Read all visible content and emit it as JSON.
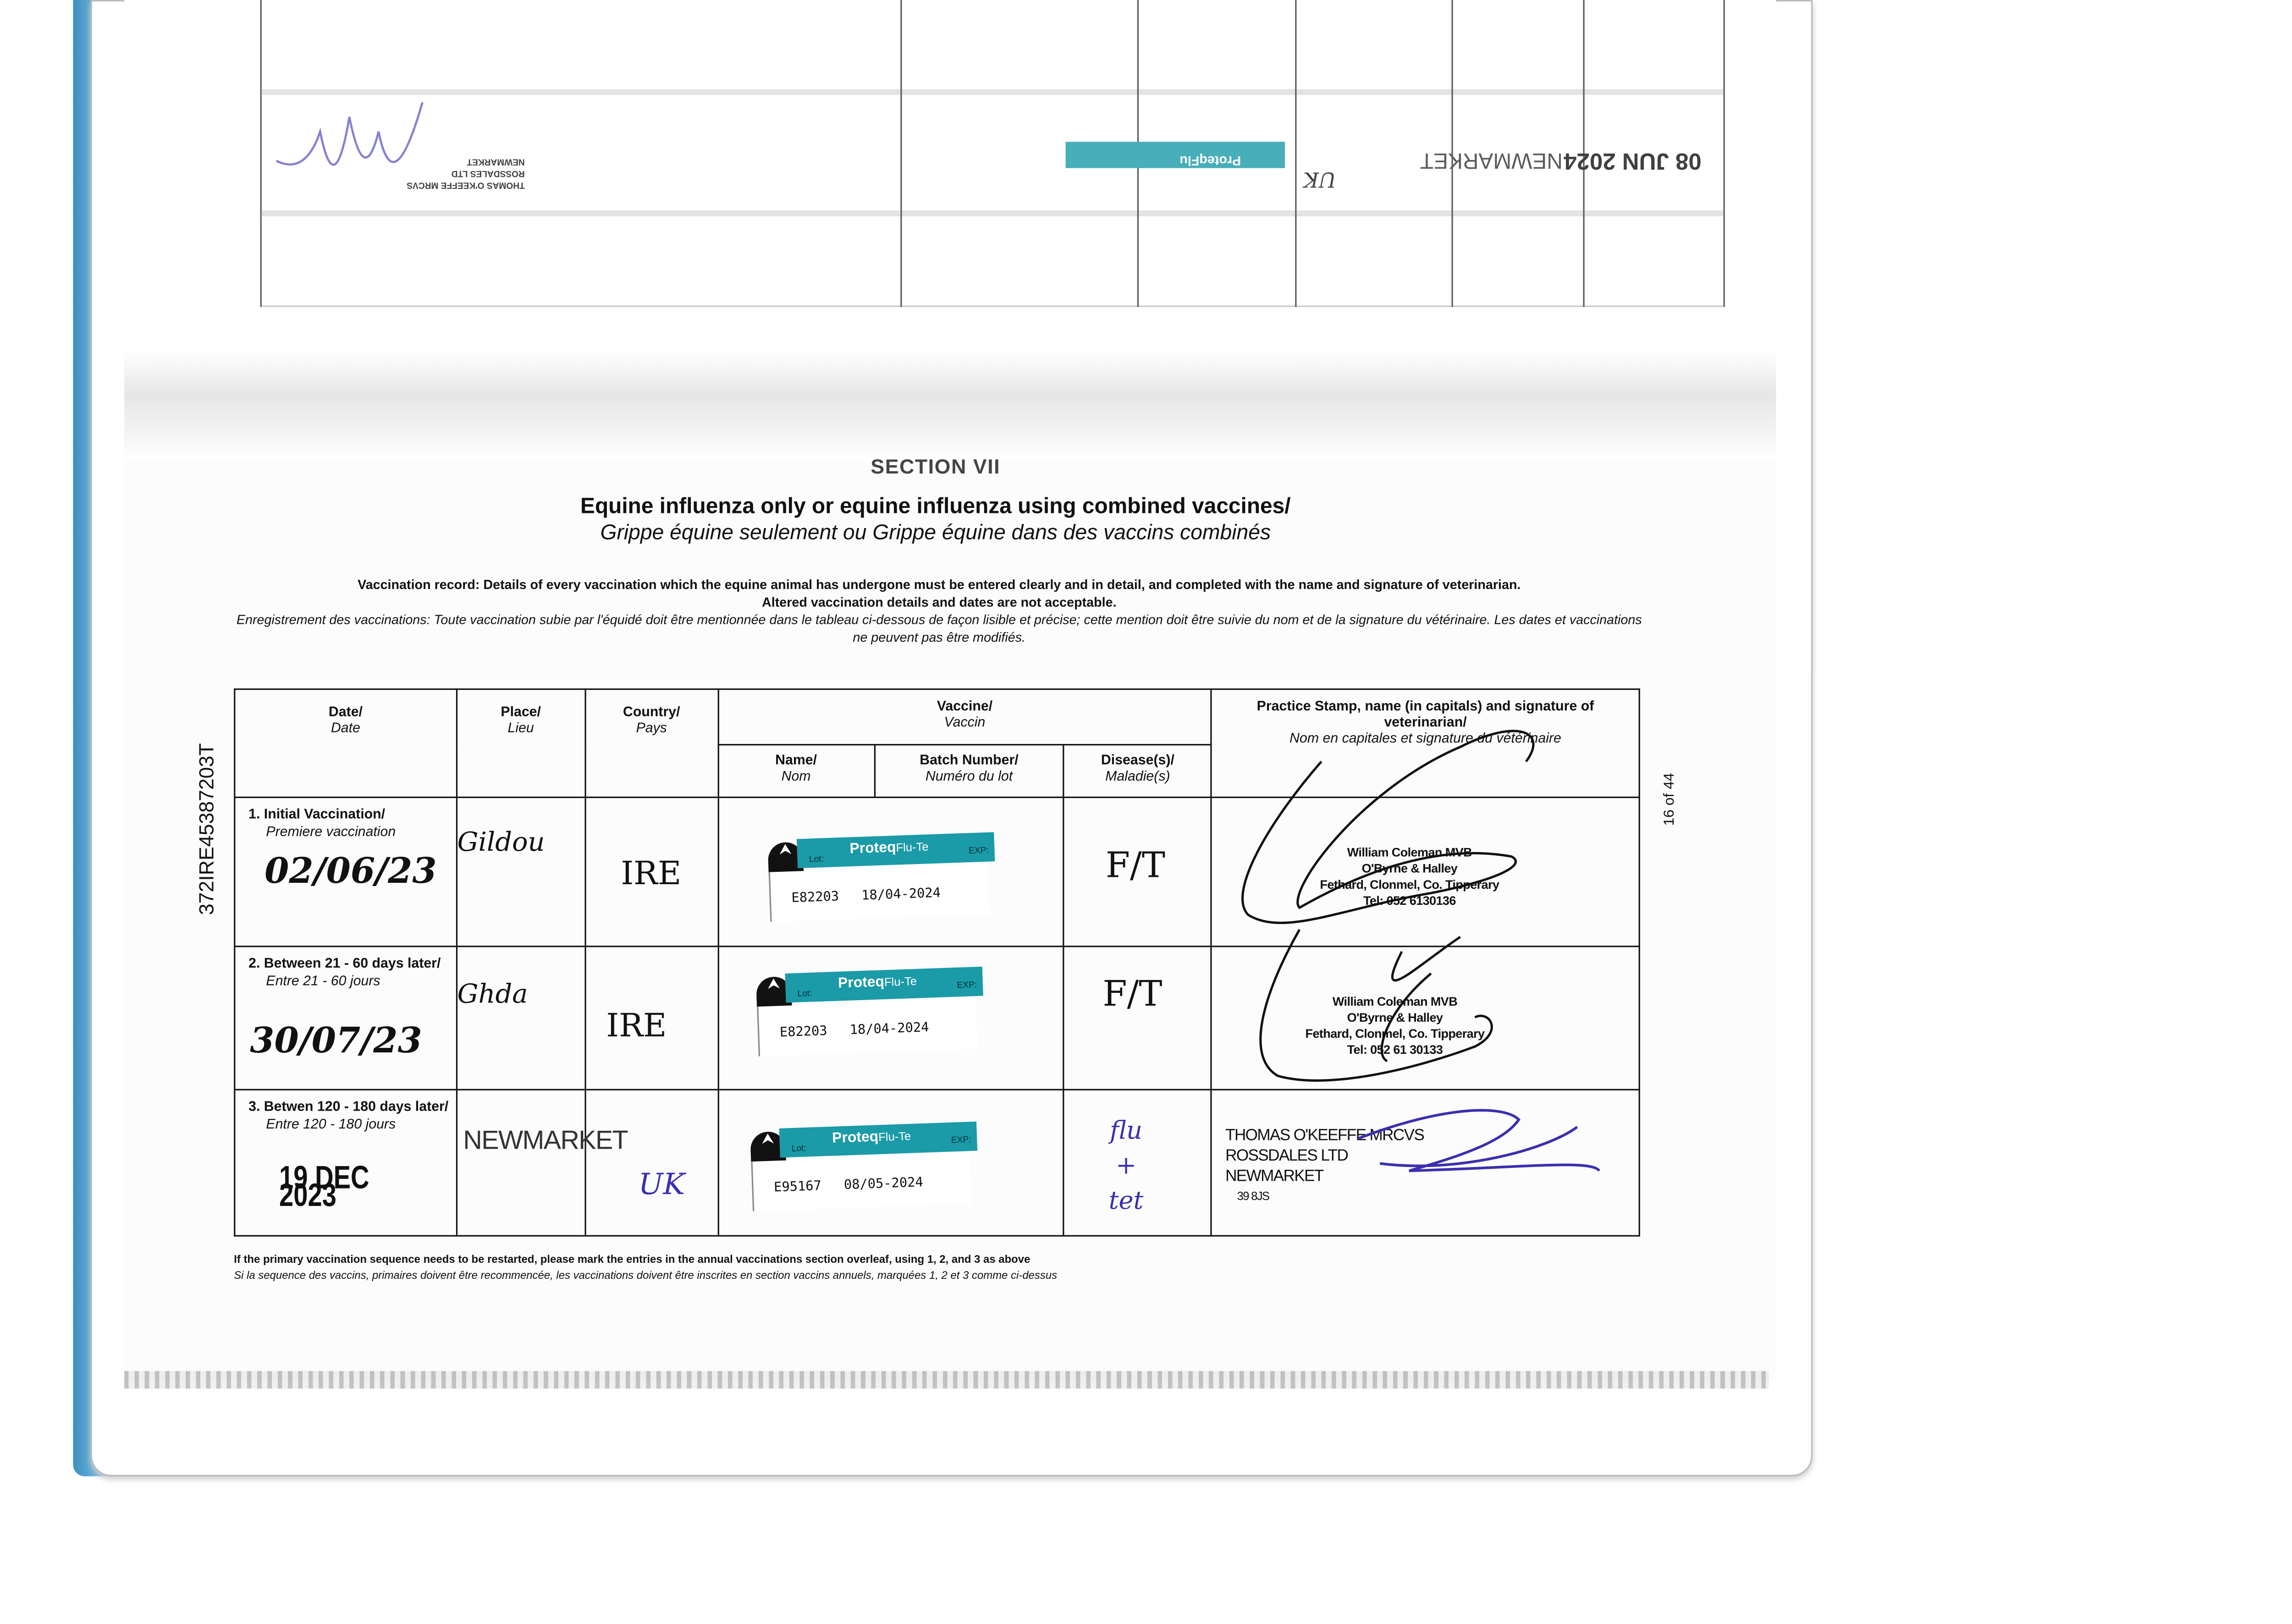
{
  "side_ids": {
    "passport_number": "372IRE45387203T",
    "page_indicator": "16 of 44"
  },
  "facing_page_upside_down": {
    "date_stamp": "08 JUN 2024",
    "place_stamp": "NEWMARKET",
    "vaccine_label": "ProteqFlu",
    "country": "UK",
    "vet_stamp": [
      "THOMAS O'KEEFFE MRCVS",
      "ROSSDALES LTD",
      "NEWMARKET"
    ]
  },
  "section": "SECTION VII",
  "title": "Equine influenza only or equine influenza using combined vaccines/",
  "subtitle": "Grippe équine seulement ou Grippe équine dans des vaccins combinés",
  "instructions": {
    "en_1": "Vaccination record: Details of every vaccination which the equine animal has undergone must be entered clearly and in detail, and completed with the name and signature of veterinarian.",
    "en_2": "Altered vaccination details and dates are not acceptable.",
    "fr": "Enregistrement des vaccinations: Toute vaccination subie par l'équidé doit être mentionnée dans le tableau ci-dessous de façon lisible et précise; cette mention doit être suivie du nom et de la signature du vétérinaire. Les dates et vaccinations ne peuvent pas être modifiés."
  },
  "table": {
    "headers": {
      "date": {
        "en": "Date/",
        "fr": "Date"
      },
      "place": {
        "en": "Place/",
        "fr": "Lieu"
      },
      "country": {
        "en": "Country/",
        "fr": "Pays"
      },
      "vaccine": {
        "en": "Vaccine/",
        "fr": "Vaccin"
      },
      "name": {
        "en": "Name/",
        "fr": "Nom"
      },
      "batch": {
        "en": "Batch Number/",
        "fr": "Numéro du lot"
      },
      "disease": {
        "en": "Disease(s)/",
        "fr": "Maladie(s)"
      },
      "stamp": {
        "en": "Practice Stamp, name (in capitals) and signature of veterinarian/",
        "fr": "Nom en capitales et signature du vétérinaire"
      }
    },
    "rows": [
      {
        "label_en": "1. Initial Vaccination/",
        "label_fr": "Premiere vaccination",
        "date": "02/06/23",
        "place": "Gildou",
        "country": "IRE",
        "vaccine_brand": "Proteq",
        "vaccine_name": "Flu-Te",
        "lot_label": "Lot:",
        "exp_label": "EXP:",
        "batch": "E82203",
        "expiry": "18/04-2024",
        "disease": "F/T",
        "vet": [
          "William Coleman MVB",
          "O'Byrne & Halley",
          "Fethard, Clonmel, Co. Tipperary",
          "Tel: 052 6130136"
        ]
      },
      {
        "label_en": "2. Between 21 - 60 days later/",
        "label_fr": "Entre 21 - 60 jours",
        "date": "30/07/23",
        "place": "Ghda",
        "country": "IRE",
        "vaccine_brand": "Proteq",
        "vaccine_name": "Flu-Te",
        "lot_label": "Lot:",
        "exp_label": "EXP:",
        "batch": "E82203",
        "expiry": "18/04-2024",
        "disease": "F/T",
        "vet": [
          "William Coleman MVB",
          "O'Byrne & Halley",
          "Fethard, Clonmel, Co. Tipperary",
          "Tel: 052 61 30133"
        ]
      },
      {
        "label_en": "3. Betwen 120 - 180 days later/",
        "label_fr": "Entre 120 - 180 jours",
        "date": "19 DEC 2023",
        "place": "NEWMARKET",
        "country": "UK",
        "vaccine_brand": "Proteq",
        "vaccine_name": "Flu-Te",
        "lot_label": "Lot:",
        "exp_label": "EXP:",
        "batch": "E95167",
        "expiry": "08/05-2024",
        "disease": "flu + tet",
        "vet": [
          "THOMAS O'KEEFFE MRCVS",
          "ROSSDALES LTD",
          "NEWMARKET",
          "39 8JS"
        ]
      }
    ]
  },
  "footnote": {
    "en": "If the primary vaccination sequence needs to be restarted, please mark the entries in the annual vaccinations section overleaf, using 1, 2, and 3 as above",
    "fr": "Si la sequence des vaccins, primaires doivent être recommencée, les vaccinations doivent être inscrites en section vaccins annuels, marquées 1, 2 et 3 comme ci-dessus"
  },
  "colors": {
    "binder_blue": "#4fa5d3",
    "label_teal": "#1b9aa8",
    "ink_blue": "#3a2fb0",
    "ink_black": "#111111"
  }
}
